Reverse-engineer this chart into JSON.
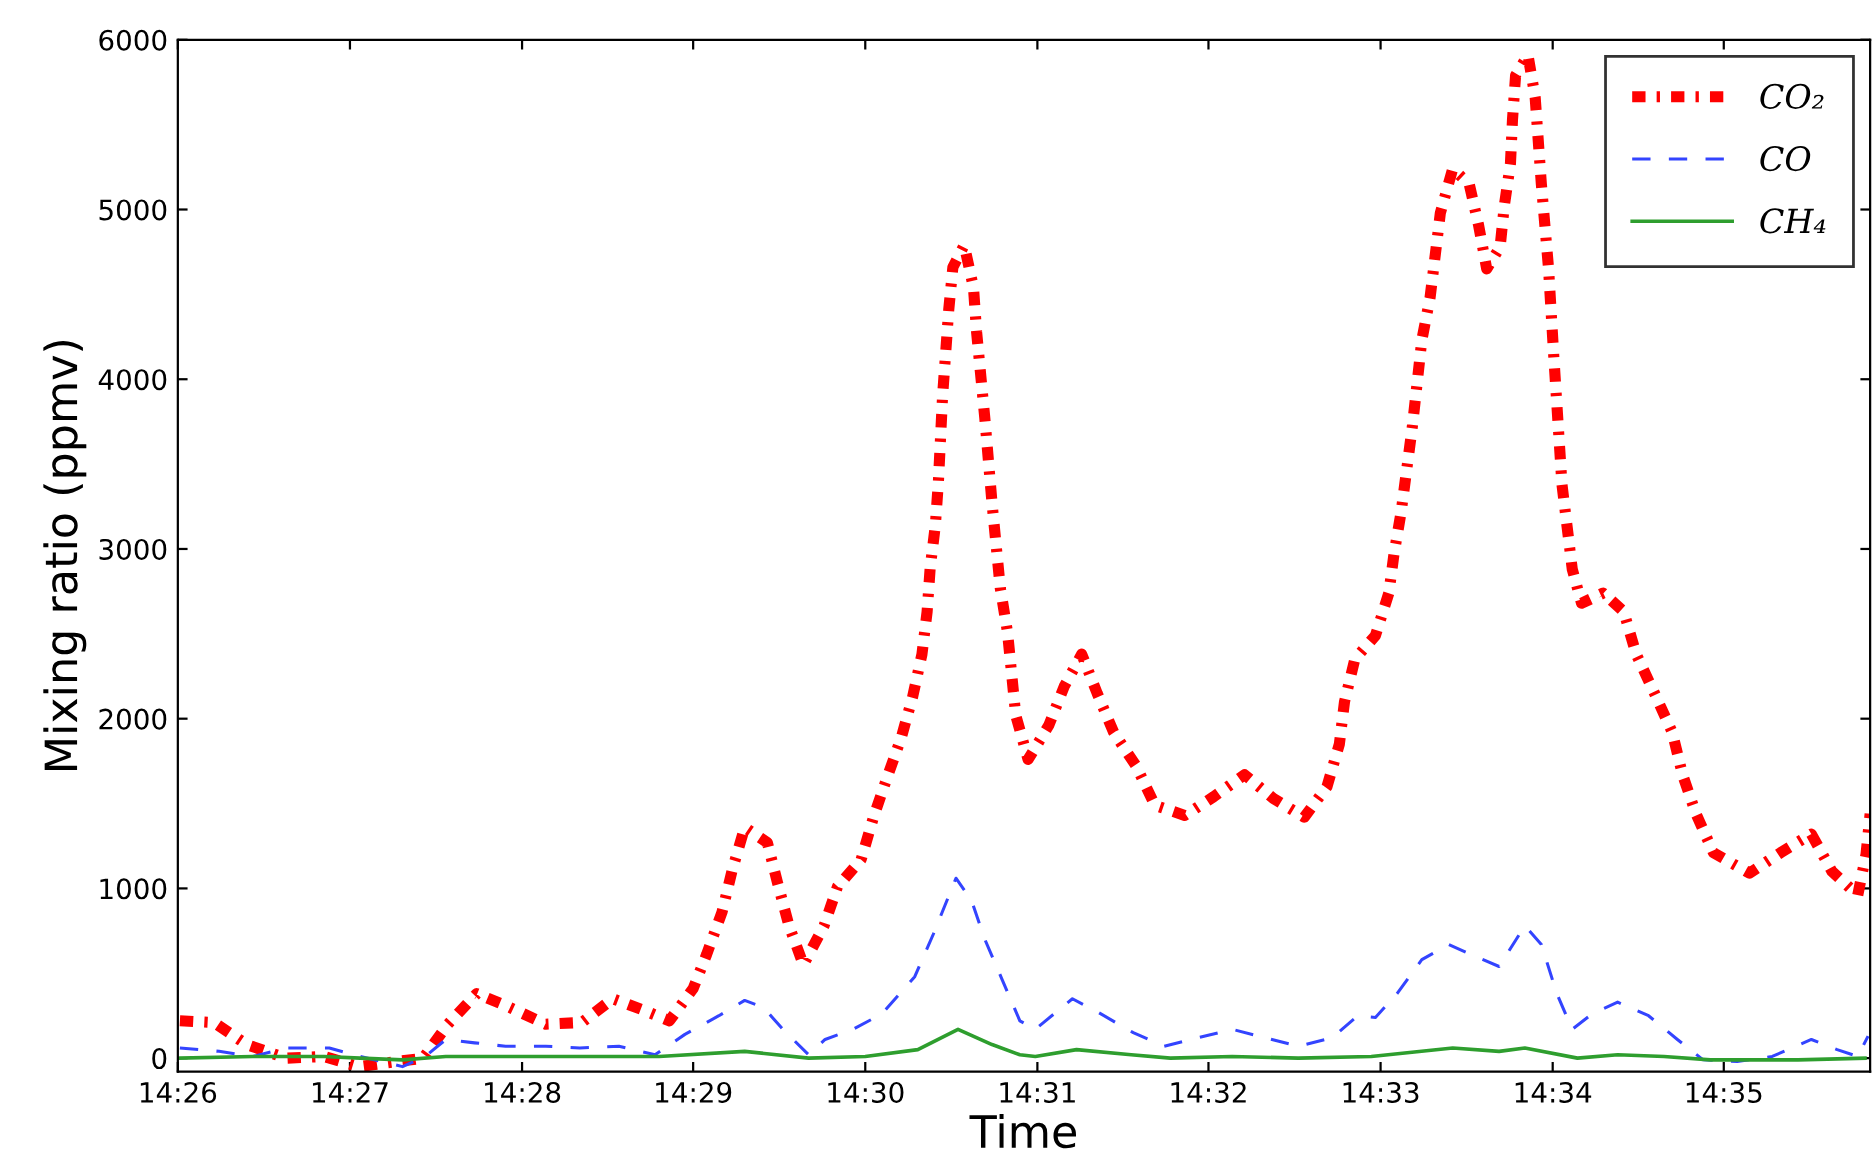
{
  "chart_data": {
    "type": "line",
    "xlabel": "Time",
    "ylabel": "Mixing ratio (ppmv)",
    "xlim": [
      14.4333,
      14.5975
    ],
    "xticks": [
      {
        "value": 14.4333,
        "label": "14:26"
      },
      {
        "value": 14.45,
        "label": "14:27"
      },
      {
        "value": 14.4667,
        "label": "14:28"
      },
      {
        "value": 14.4833,
        "label": "14:29"
      },
      {
        "value": 14.5,
        "label": "14:30"
      },
      {
        "value": 14.5167,
        "label": "14:31"
      },
      {
        "value": 14.5333,
        "label": "14:32"
      },
      {
        "value": 14.55,
        "label": "14:33"
      },
      {
        "value": 14.5667,
        "label": "14:34"
      },
      {
        "value": 14.5833,
        "label": "14:35"
      }
    ],
    "ylim": [
      -80,
      6000
    ],
    "yticks": [
      0,
      1000,
      2000,
      3000,
      4000,
      5000,
      6000
    ],
    "grid": false,
    "legend": "top right",
    "marker": "none",
    "series": [
      {
        "name": "CO₂",
        "color": "#ff0000",
        "line_style": "dashdot",
        "x": [
          14.4335,
          14.4368,
          14.44,
          14.4438,
          14.4475,
          14.4508,
          14.4571,
          14.4595,
          14.4623,
          14.4651,
          14.469,
          14.4725,
          14.4755,
          14.4786,
          14.481,
          14.4833,
          14.4846,
          14.4861,
          14.4871,
          14.4883,
          14.4905,
          14.4915,
          14.4926,
          14.494,
          14.496,
          14.4973,
          14.4996,
          14.5008,
          14.5021,
          14.5035,
          14.5046,
          14.5055,
          14.506,
          14.5063,
          14.5068,
          14.5071,
          14.5075,
          14.5081,
          14.5085,
          14.5096,
          14.5105,
          14.5108,
          14.5116,
          14.5123,
          14.5131,
          14.5138,
          14.5146,
          14.5158,
          14.5178,
          14.5193,
          14.521,
          14.5225,
          14.5241,
          14.5263,
          14.5281,
          14.531,
          14.5338,
          14.5368,
          14.5396,
          14.5426,
          14.5448,
          14.546,
          14.5465,
          14.5475,
          14.5495,
          14.5508,
          14.5513,
          14.552,
          14.5531,
          14.554,
          14.5548,
          14.5558,
          14.557,
          14.5586,
          14.5595,
          14.5603,
          14.5616,
          14.562,
          14.5626,
          14.5628,
          14.5631,
          14.5643,
          14.565,
          14.5656,
          14.5663,
          14.5668,
          14.5676,
          14.5686,
          14.5695,
          14.5716,
          14.5736,
          14.5748,
          14.5765,
          14.5783,
          14.5793,
          14.5806,
          14.5823,
          14.5858,
          14.5888,
          14.5918,
          14.5938,
          14.5963,
          14.5971,
          14.5975
        ],
        "values": [
          220,
          210,
          80,
          0,
          10,
          -50,
          0,
          200,
          380,
          310,
          200,
          210,
          350,
          280,
          220,
          410,
          610,
          860,
          1110,
          1360,
          1270,
          1030,
          780,
          550,
          780,
          1010,
          1170,
          1420,
          1650,
          1890,
          2130,
          2380,
          2630,
          2890,
          3140,
          3400,
          3900,
          4410,
          4660,
          4790,
          4540,
          4280,
          3770,
          3270,
          2770,
          2510,
          2020,
          1760,
          1960,
          2190,
          2380,
          2150,
          1920,
          1720,
          1490,
          1430,
          1540,
          1670,
          1530,
          1420,
          1600,
          1850,
          2100,
          2350,
          2490,
          2740,
          2970,
          3220,
          3730,
          4230,
          4480,
          4980,
          5240,
          5150,
          4910,
          4650,
          4780,
          5020,
          5270,
          5530,
          5790,
          5910,
          5660,
          5150,
          4650,
          4140,
          3380,
          2880,
          2680,
          2740,
          2630,
          2380,
          2160,
          1920,
          1670,
          1440,
          1210,
          1090,
          1210,
          1320,
          1100,
          960,
          1200,
          1440
        ]
      },
      {
        "name": "CO",
        "color": "#3344ff",
        "line_style": "dashed",
        "x": [
          14.4335,
          14.4373,
          14.4406,
          14.4438,
          14.448,
          14.451,
          14.4551,
          14.4573,
          14.4593,
          14.4621,
          14.4651,
          14.469,
          14.4723,
          14.4761,
          14.4796,
          14.4825,
          14.4858,
          14.4883,
          14.4901,
          14.492,
          14.4945,
          14.4961,
          14.4988,
          14.5016,
          14.5048,
          14.5066,
          14.5088,
          14.5103,
          14.5116,
          14.5133,
          14.515,
          14.5165,
          14.5183,
          14.5201,
          14.5226,
          14.526,
          14.529,
          14.5323,
          14.5356,
          14.5388,
          14.542,
          14.5453,
          14.5478,
          14.5495,
          14.5516,
          14.554,
          14.5566,
          14.5588,
          14.5615,
          14.564,
          14.5656,
          14.5671,
          14.5686,
          14.5705,
          14.573,
          14.576,
          14.5788,
          14.5813,
          14.5846,
          14.588,
          14.5918,
          14.5943,
          14.5963,
          14.5973
        ],
        "values": [
          60,
          40,
          10,
          60,
          60,
          10,
          -50,
          10,
          110,
          90,
          70,
          70,
          60,
          70,
          20,
          140,
          250,
          340,
          300,
          170,
          20,
          110,
          170,
          260,
          480,
          730,
          1060,
          930,
          700,
          460,
          220,
          170,
          260,
          350,
          270,
          150,
          70,
          120,
          170,
          120,
          70,
          120,
          250,
          240,
          380,
          580,
          670,
          610,
          540,
          780,
          670,
          380,
          170,
          260,
          330,
          250,
          110,
          -10,
          -20,
          10,
          110,
          50,
          10,
          130
        ]
      },
      {
        "name": "CH₄",
        "color": "#2e9e2e",
        "line_style": "solid",
        "x": [
          14.4335,
          14.4406,
          14.4475,
          14.451,
          14.4551,
          14.4593,
          14.4703,
          14.48,
          14.4883,
          14.4945,
          14.5,
          14.5051,
          14.509,
          14.5123,
          14.515,
          14.5165,
          14.5205,
          14.5258,
          14.5296,
          14.5356,
          14.542,
          14.5491,
          14.557,
          14.5615,
          14.564,
          14.5691,
          14.573,
          14.5775,
          14.582,
          14.5905,
          14.597
        ],
        "values": [
          0,
          10,
          10,
          0,
          -10,
          10,
          10,
          10,
          40,
          0,
          10,
          50,
          170,
          80,
          20,
          10,
          50,
          20,
          0,
          10,
          0,
          10,
          60,
          40,
          60,
          0,
          20,
          10,
          -10,
          -10,
          0
        ]
      }
    ]
  }
}
